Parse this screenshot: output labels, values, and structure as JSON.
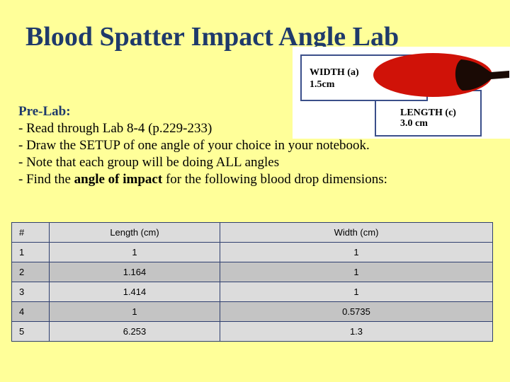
{
  "title": "Blood Spatter Impact Angle Lab",
  "figure": {
    "width_label": "WIDTH (a)",
    "width_value": "1.5cm",
    "length_label": "LENGTH (c)",
    "length_value": "3.0 cm",
    "drop_color": "#d01208",
    "tail_color": "#1a0a05",
    "box_color": "#3b4f8a"
  },
  "prelab": {
    "heading": "Pre-Lab:",
    "items": [
      "- Read through Lab 8-4 (p.229-233)",
      "- Draw the SETUP of one angle of your choice in your notebook.",
      "- Note that each group will be doing ALL angles"
    ],
    "last_item_before": "- Find the ",
    "last_item_bold": "angle of impact",
    "last_item_after": " for the following blood drop dimensions:"
  },
  "table": {
    "headers": [
      "#",
      "Length (cm)",
      "Width (cm)"
    ],
    "rows": [
      [
        "1",
        "1",
        "1"
      ],
      [
        "2",
        "1.164",
        "1"
      ],
      [
        "3",
        "1.414",
        "1"
      ],
      [
        "4",
        "1",
        "0.5735"
      ],
      [
        "5",
        "6.253",
        "1.3"
      ]
    ]
  }
}
